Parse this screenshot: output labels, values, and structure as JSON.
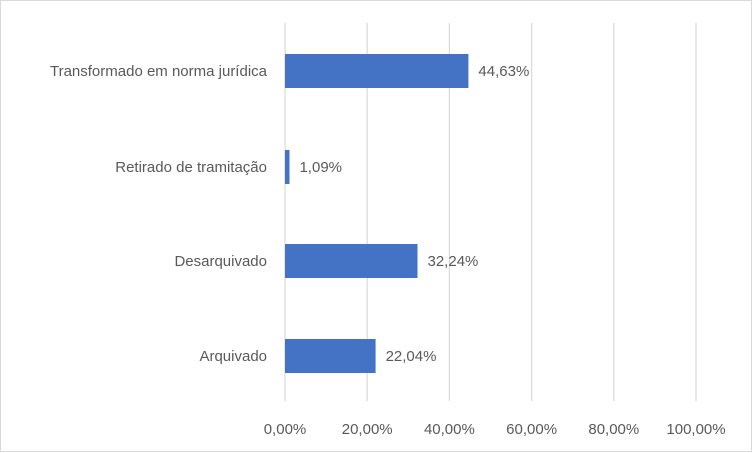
{
  "chart_data": {
    "type": "bar",
    "orientation": "horizontal",
    "title": "",
    "xlabel": "",
    "ylabel": "",
    "xlim": [
      0,
      100
    ],
    "x_ticks": [
      0,
      20,
      40,
      60,
      80,
      100
    ],
    "x_tick_labels": [
      "0,00%",
      "20,00%",
      "40,00%",
      "60,00%",
      "80,00%",
      "100,00%"
    ],
    "grid": true,
    "legend": "none",
    "categories": [
      "Transformado em norma jurídica",
      "Retirado de tramitação",
      "Desarquivado",
      "Arquivado"
    ],
    "values": [
      44.63,
      1.09,
      32.24,
      22.04
    ],
    "value_labels": [
      "44,63%",
      "1,09%",
      "32,24%",
      "22,04%"
    ],
    "colors": {
      "bar": "#4472c4",
      "grid": "#d9d9d9",
      "text": "#595959"
    }
  }
}
